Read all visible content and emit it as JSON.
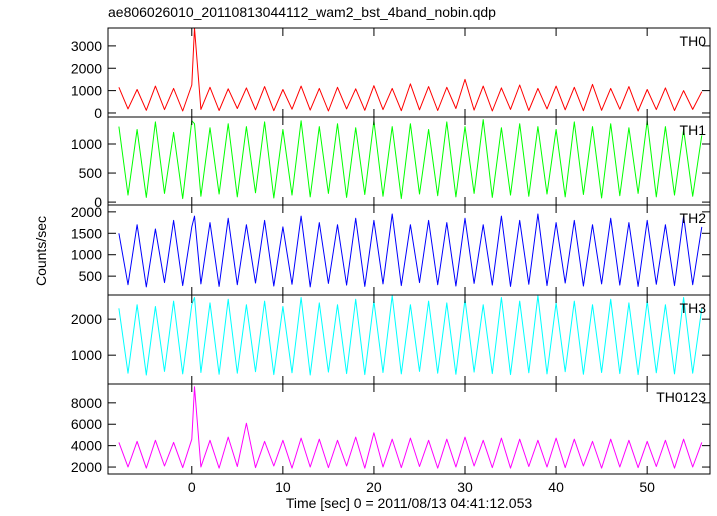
{
  "title": "ae806026010_20110813044112_wam2_bst_4band_nobin.qdp",
  "xlabel": "Time [sec] 0 = 2011/08/13 04:41:12.053",
  "ylabel": "Counts/sec",
  "x": [
    -8,
    -7,
    -6,
    -5,
    -4,
    -3,
    -2,
    -1,
    0,
    0.3,
    1,
    2,
    3,
    4,
    5,
    6,
    7,
    8,
    9,
    10,
    11,
    12,
    13,
    14,
    15,
    16,
    17,
    18,
    19,
    20,
    21,
    22,
    23,
    24,
    25,
    26,
    27,
    28,
    29,
    30,
    31,
    32,
    33,
    34,
    35,
    36,
    37,
    38,
    39,
    40,
    41,
    42,
    43,
    44,
    45,
    46,
    47,
    48,
    49,
    50,
    51,
    52,
    53,
    54,
    55,
    56
  ],
  "xlim": [
    -9.2,
    56.9
  ],
  "xticks": [
    0,
    10,
    20,
    30,
    40,
    50
  ],
  "chart_data": [
    {
      "type": "line",
      "ylim": [
        -180,
        3800
      ],
      "yticks": [
        0,
        1000,
        2000,
        3000
      ],
      "series": [
        {
          "name": "TH0",
          "color": "#ff0000",
          "values": [
            1150,
            180,
            1050,
            120,
            1200,
            150,
            1100,
            90,
            1250,
            3800,
            160,
            1150,
            110,
            1080,
            200,
            1120,
            140,
            1180,
            100,
            1050,
            170,
            1200,
            130,
            1100,
            90,
            1150,
            180,
            1080,
            120,
            1220,
            150,
            1100,
            100,
            1300,
            140,
            1180,
            110,
            1150,
            200,
            1500,
            130,
            1200,
            90,
            1120,
            160,
            1250,
            110,
            1100,
            180,
            1200,
            140,
            1150,
            100,
            1280,
            120,
            1100,
            170,
            1180,
            90,
            1050,
            150,
            1120,
            110,
            1000,
            160,
            950
          ]
        }
      ]
    },
    {
      "type": "line",
      "ylim": [
        -50,
        1465
      ],
      "yticks": [
        0,
        500,
        1000
      ],
      "series": [
        {
          "name": "TH1",
          "color": "#00ff00",
          "values": [
            1300,
            120,
            1250,
            80,
            1380,
            150,
            1200,
            60,
            1400,
            1350,
            100,
            1280,
            140,
            1350,
            90,
            1300,
            160,
            1380,
            70,
            1250,
            120,
            1400,
            90,
            1300,
            150,
            1350,
            80,
            1280,
            130,
            1400,
            100,
            1300,
            60,
            1350,
            140,
            1250,
            110,
            1380,
            90,
            1300,
            150,
            1420,
            80,
            1280,
            120,
            1350,
            100,
            1300,
            140,
            1250,
            90,
            1380,
            130,
            1300,
            70,
            1350,
            110,
            1280,
            150,
            1400,
            90,
            1300,
            120,
            1250,
            100,
            1150
          ]
        }
      ]
    },
    {
      "type": "line",
      "ylim": [
        60,
        2160
      ],
      "yticks": [
        500,
        1000,
        1500,
        2000
      ],
      "series": [
        {
          "name": "TH2",
          "color": "#0000ff",
          "values": [
            1500,
            300,
            1700,
            250,
            1600,
            350,
            1800,
            280,
            1650,
            1900,
            320,
            1750,
            260,
            1850,
            300,
            1700,
            340,
            1800,
            270,
            1650,
            310,
            1900,
            250,
            1750,
            330,
            1700,
            290,
            1850,
            260,
            1800,
            320,
            1950,
            280,
            1700,
            350,
            1800,
            300,
            1750,
            270,
            1850,
            330,
            1700,
            290,
            1900,
            260,
            1800,
            310,
            1950,
            280,
            1750,
            340,
            1800,
            270,
            1700,
            320,
            1850,
            290,
            1750,
            260,
            1800,
            310,
            1700,
            280,
            1900,
            300,
            1650
          ]
        }
      ]
    },
    {
      "type": "line",
      "ylim": [
        200,
        2670
      ],
      "yticks": [
        1000,
        2000
      ],
      "series": [
        {
          "name": "TH3",
          "color": "#00ffff",
          "values": [
            2300,
            500,
            2400,
            450,
            2350,
            550,
            2500,
            480,
            2400,
            2600,
            520,
            2450,
            470,
            2550,
            500,
            2400,
            540,
            2500,
            460,
            2350,
            510,
            2600,
            450,
            2450,
            530,
            2400,
            490,
            2550,
            460,
            2500,
            520,
            2650,
            480,
            2400,
            550,
            2500,
            500,
            2450,
            470,
            2550,
            530,
            2400,
            490,
            2600,
            460,
            2500,
            510,
            2650,
            480,
            2450,
            540,
            2500,
            470,
            2400,
            520,
            2550,
            490,
            2450,
            460,
            2500,
            510,
            2400,
            480,
            2600,
            500,
            2300
          ]
        }
      ]
    },
    {
      "type": "line",
      "ylim": [
        1350,
        9760
      ],
      "yticks": [
        2000,
        4000,
        6000,
        8000
      ],
      "series": [
        {
          "name": "TH0123",
          "color": "#ff00ff",
          "values": [
            4300,
            2000,
            4400,
            1900,
            4500,
            2100,
            4300,
            1950,
            4600,
            9500,
            2000,
            4500,
            1900,
            4800,
            2050,
            6100,
            1950,
            4400,
            2100,
            4500,
            1900,
            4700,
            2000,
            4600,
            1950,
            4500,
            2100,
            4800,
            1900,
            5200,
            2000,
            4600,
            1950,
            4700,
            2050,
            4500,
            1900,
            4600,
            2000,
            4800,
            2100,
            4500,
            1950,
            4700,
            1900,
            4600,
            2050,
            4500,
            2000,
            4700,
            1950,
            4600,
            2100,
            4400,
            1900,
            4600,
            2000,
            4500,
            1950,
            4400,
            2050,
            4500,
            1900,
            4600,
            2000,
            4300
          ]
        }
      ]
    }
  ]
}
